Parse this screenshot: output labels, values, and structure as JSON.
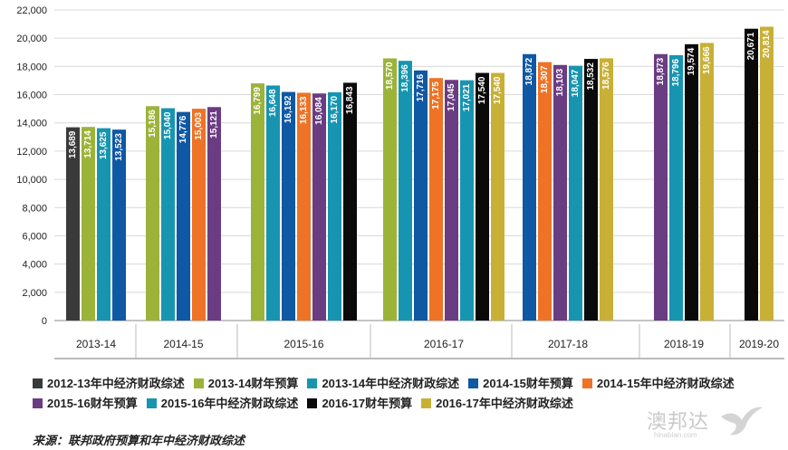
{
  "chart_data": {
    "type": "bar",
    "ylim": [
      0,
      22000
    ],
    "yticks": [
      "0",
      "2,000",
      "4,000",
      "6,000",
      "8,000",
      "10,000",
      "12,000",
      "14,000",
      "16,000",
      "18,000",
      "20,000",
      "22,000"
    ],
    "grid": true,
    "legend_position": "bottom",
    "categories": [
      "2013-14",
      "2014-15",
      "2015-16",
      "2016-17",
      "2017-18",
      "2018-19",
      "2019-20"
    ],
    "series": [
      {
        "name": "2012-13年中经济财政综述",
        "color": "#3a3a3a",
        "values": [
          13689,
          null,
          null,
          null,
          null,
          null,
          null
        ],
        "labels": [
          "13,689",
          null,
          null,
          null,
          null,
          null,
          null
        ]
      },
      {
        "name": "2013-14财年预算",
        "color": "#9cb33a",
        "values": [
          13714,
          15186,
          16799,
          18570,
          null,
          null,
          null
        ],
        "labels": [
          "13,714",
          "15,186",
          "16,799",
          "18,570",
          null,
          null,
          null
        ]
      },
      {
        "name": "2013-14年中经济财政综述",
        "color": "#1795b0",
        "values": [
          13625,
          15040,
          16648,
          18396,
          null,
          null,
          null
        ],
        "labels": [
          "13,625",
          "15,040",
          "16,648",
          "18,396",
          null,
          null,
          null
        ]
      },
      {
        "name": "2014-15财年预算",
        "color": "#0f58a3",
        "values": [
          13523,
          14776,
          16192,
          17716,
          18872,
          null,
          null
        ],
        "labels": [
          "13,523",
          "14,776",
          "16,192",
          "17,716",
          "18,872",
          null,
          null
        ]
      },
      {
        "name": "2014-15年中经济财政综述",
        "color": "#ee7326",
        "values": [
          null,
          15003,
          16133,
          17175,
          18307,
          null,
          null
        ],
        "labels": [
          null,
          "15,003",
          "16,133",
          "17,175",
          "18,307",
          null,
          null
        ]
      },
      {
        "name": "2015-16财年预算",
        "color": "#6a3c82",
        "values": [
          null,
          15121,
          16084,
          17045,
          18103,
          18873,
          null
        ],
        "labels": [
          null,
          "15,121",
          "16,084",
          "17,045",
          "18,103",
          "18,873",
          null
        ]
      },
      {
        "name": "2015-16年中经济财政综述",
        "color": "#1795b0",
        "values": [
          null,
          null,
          16170,
          17021,
          18047,
          18796,
          null
        ],
        "labels": [
          null,
          null,
          "16,170",
          "17,021",
          "18,047",
          "18,796",
          null
        ]
      },
      {
        "name": "2016-17财年预算",
        "color": "#0a0a0a",
        "values": [
          null,
          null,
          16843,
          17540,
          18532,
          19574,
          20671
        ],
        "labels": [
          null,
          null,
          "16,843",
          "17,540",
          "18,532",
          "19,574",
          "20,671"
        ]
      },
      {
        "name": "2016-17年中经济财政综述",
        "color": "#c8b036",
        "values": [
          null,
          null,
          null,
          17540,
          18576,
          19666,
          20814
        ],
        "labels": [
          null,
          null,
          null,
          "17,540",
          "18,576",
          "19,666",
          "20,814"
        ]
      }
    ]
  },
  "legend": [
    {
      "label": "2012-13年中经济财政综述",
      "color": "#3a3a3a"
    },
    {
      "label": "2013-14财年预算",
      "color": "#9cb33a"
    },
    {
      "label": "2013-14年中经济财政综述",
      "color": "#1795b0"
    },
    {
      "label": "2014-15财年预算",
      "color": "#0f58a3"
    },
    {
      "label": "2014-15年中经济财政综述",
      "color": "#ee7326"
    },
    {
      "label": "2015-16财年预算",
      "color": "#6a3c82"
    },
    {
      "label": "2015-16年中经济财政综述",
      "color": "#1795b0"
    },
    {
      "label": "2016-17财年预算",
      "color": "#0a0a0a"
    },
    {
      "label": "2016-17年中经济财政综述",
      "color": "#c8b036"
    }
  ],
  "source": "来源：联邦政府预算和年中经济财政综述",
  "watermark": {
    "text": "澳邦达",
    "sub": "hinabian.com",
    "icon": "bird-logo-icon"
  }
}
